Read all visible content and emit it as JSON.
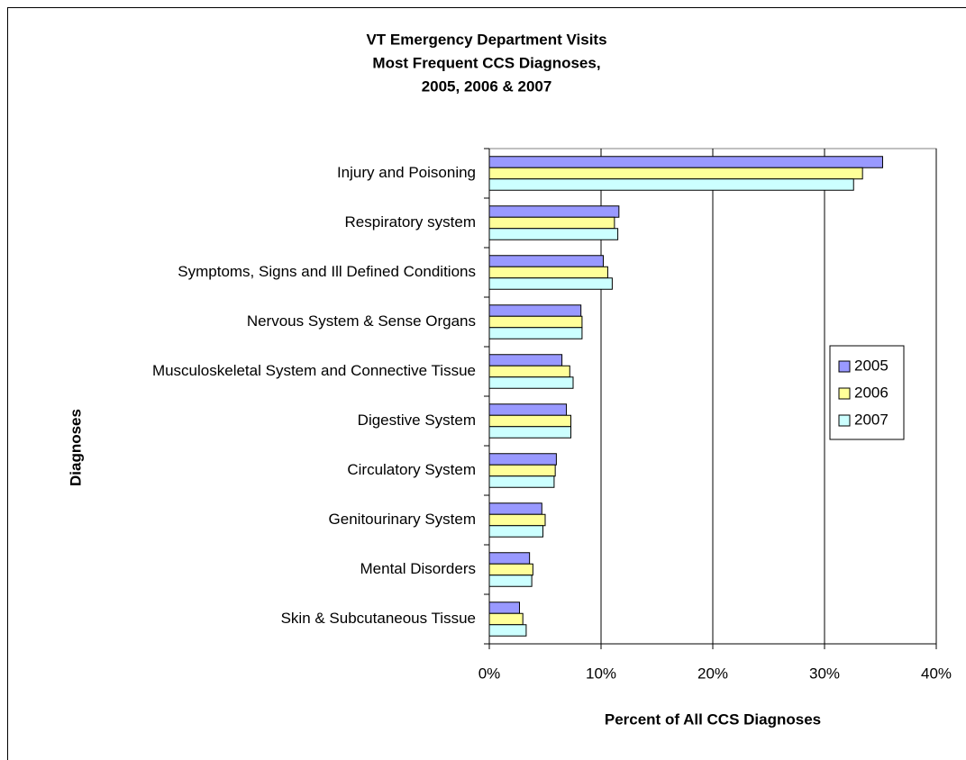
{
  "chart_data": {
    "type": "bar",
    "orientation": "horizontal",
    "title": [
      "VT Emergency Department Visits",
      "Most Frequent CCS Diagnoses,",
      "2005, 2006 & 2007"
    ],
    "x_label": "Percent of All CCS Diagnoses",
    "y_label": "Diagnoses",
    "categories": [
      "Injury and Poisoning",
      "Respiratory system",
      "Symptoms, Signs and Ill Defined Conditions",
      "Nervous System & Sense Organs",
      "Musculoskeletal System and Connective Tissue",
      "Digestive System",
      "Circulatory System",
      "Genitourinary System",
      "Mental Disorders",
      "Skin & Subcutaneous Tissue"
    ],
    "series": [
      {
        "name": "2005",
        "color": "#9999ff",
        "values": [
          35.2,
          11.6,
          10.2,
          8.2,
          6.5,
          6.9,
          6.0,
          4.7,
          3.6,
          2.7
        ]
      },
      {
        "name": "2006",
        "color": "#ffff99",
        "values": [
          33.4,
          11.2,
          10.6,
          8.3,
          7.2,
          7.3,
          5.9,
          5.0,
          3.9,
          3.0
        ]
      },
      {
        "name": "2007",
        "color": "#ccffff",
        "values": [
          32.6,
          11.5,
          11.0,
          8.3,
          7.5,
          7.3,
          5.8,
          4.8,
          3.8,
          3.3
        ]
      }
    ],
    "xlim": [
      0,
      40
    ],
    "xticks": [
      {
        "value": 0,
        "label": "0%"
      },
      {
        "value": 10,
        "label": "10%"
      },
      {
        "value": 20,
        "label": "20%"
      },
      {
        "value": 30,
        "label": "30%"
      },
      {
        "value": 40,
        "label": "40%"
      }
    ],
    "grid": true,
    "legend": "right"
  }
}
